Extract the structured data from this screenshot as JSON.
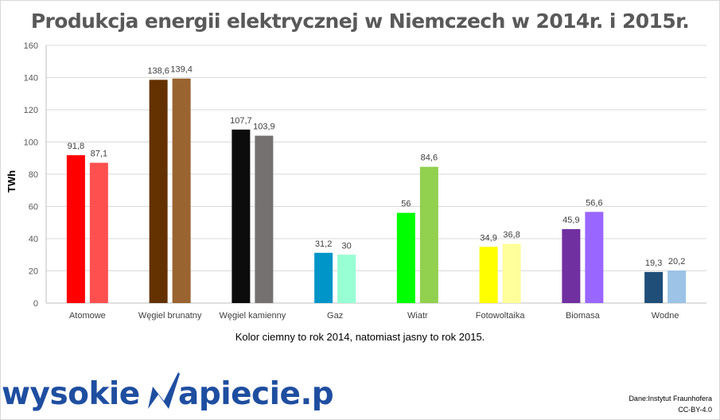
{
  "chart_data": {
    "type": "bar",
    "title": "Produkcja energii elektrycznej w Niemczech w 2014r. i 2015r.",
    "ylabel": "TWh",
    "xlabel": "",
    "ylim": [
      0,
      160
    ],
    "yticks": [
      0,
      20,
      40,
      60,
      80,
      100,
      120,
      140,
      160
    ],
    "grid": true,
    "categories": [
      "Atomowe",
      "Węgiel brunatny",
      "Węgiel kamienny",
      "Gaz",
      "Wiatr",
      "Fotowoltaika",
      "Biomasa",
      "Wodne"
    ],
    "series": [
      {
        "values": [
          91.8,
          138.6,
          107.7,
          31.2,
          56,
          34.9,
          45.9,
          19.3
        ]
      },
      {
        "values": [
          87.1,
          139.4,
          103.9,
          30,
          84.6,
          36.8,
          56.6,
          20.2
        ]
      }
    ],
    "value_labels": [
      [
        "91,8",
        "138,6",
        "107,7",
        "31,2",
        "56",
        "34,9",
        "45,9",
        "19,3"
      ],
      [
        "87,1",
        "139,4",
        "103,9",
        "30",
        "84,6",
        "36,8",
        "56,6",
        "20,2"
      ]
    ],
    "bar_colors": [
      [
        "#ff0000",
        "#ff5050"
      ],
      [
        "#633200",
        "#9a6430"
      ],
      [
        "#0c0c0c",
        "#767171"
      ],
      [
        "#0095c8",
        "#97ffd3"
      ],
      [
        "#00ff00",
        "#92d050"
      ],
      [
        "#ffff00",
        "#ffff9b"
      ],
      [
        "#7030a0",
        "#9966ff"
      ],
      [
        "#1f4e79",
        "#9dc3e6"
      ]
    ],
    "caption": "Kolor ciemny to rok 2014,  natomiast jasny to rok 2015."
  },
  "logo": {
    "left": "wysokie",
    "right": "apiecie.pl",
    "color": "#1f4ea0"
  },
  "source": {
    "line1": "Dane:Instytut Fraunhofera",
    "line2": "CC-BY-4.0"
  }
}
